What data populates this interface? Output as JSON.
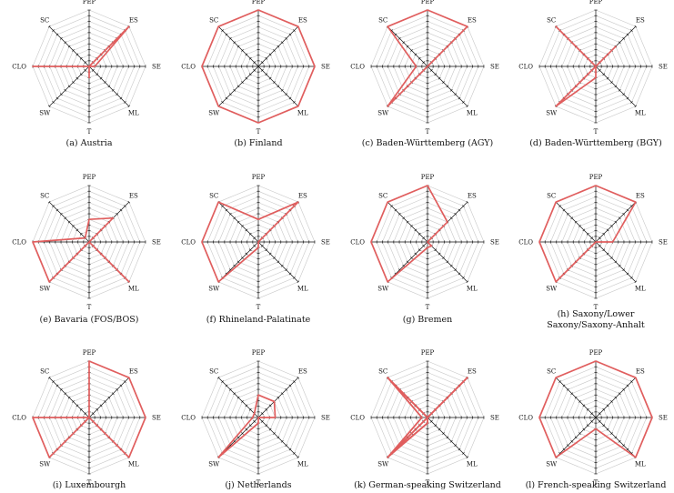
{
  "figure": {
    "colors": {
      "grid": "#c8c8c8",
      "axis": "#111111",
      "series": "#e05e5e"
    }
  },
  "chart_data": [
    {
      "type": "radar",
      "id": "a",
      "caption": "(a) Austria",
      "axes": [
        "PEP",
        "ES",
        "SE",
        "ML",
        "T",
        "SW",
        "CLO",
        "SC"
      ],
      "rmax": 10,
      "series": [
        {
          "name": "Austria",
          "values": [
            0,
            10,
            1,
            0,
            2,
            0,
            10,
            0
          ]
        }
      ]
    },
    {
      "type": "radar",
      "id": "b",
      "caption": "(b) Finland",
      "axes": [
        "PEP",
        "ES",
        "SE",
        "ML",
        "T",
        "SW",
        "CLO",
        "SC"
      ],
      "rmax": 10,
      "series": [
        {
          "name": "Finland",
          "values": [
            10,
            10,
            10,
            10,
            10,
            10,
            10,
            10
          ]
        }
      ]
    },
    {
      "type": "radar",
      "id": "c",
      "caption": "(c) Baden-Württemberg (AGY)",
      "axes": [
        "PEP",
        "ES",
        "SE",
        "ML",
        "T",
        "SW",
        "CLO",
        "SC"
      ],
      "rmax": 10,
      "series": [
        {
          "name": "Baden-Württemberg (AGY)",
          "values": [
            10,
            10,
            0,
            0,
            0,
            10,
            2,
            10
          ]
        }
      ]
    },
    {
      "type": "radar",
      "id": "d",
      "caption": "(d) Baden-Württemberg (BGY)",
      "axes": [
        "PEP",
        "ES",
        "SE",
        "ML",
        "T",
        "SW",
        "CLO",
        "SC"
      ],
      "rmax": 10,
      "series": [
        {
          "name": "Baden-Württemberg (BGY)",
          "values": [
            0,
            5,
            0,
            0,
            2,
            10,
            0,
            10
          ]
        }
      ]
    },
    {
      "type": "radar",
      "id": "e",
      "caption": "(e) Bavaria (FOS/BOS)",
      "axes": [
        "PEP",
        "ES",
        "SE",
        "ML",
        "T",
        "SW",
        "CLO",
        "SC"
      ],
      "rmax": 10,
      "series": [
        {
          "name": "Bavaria (FOS/BOS)",
          "values": [
            4,
            6,
            0,
            10,
            0,
            10,
            10,
            1
          ]
        }
      ]
    },
    {
      "type": "radar",
      "id": "f",
      "caption": "(f) Rhineland-Palatinate",
      "axes": [
        "PEP",
        "ES",
        "SE",
        "ML",
        "T",
        "SW",
        "CLO",
        "SC"
      ],
      "rmax": 10,
      "series": [
        {
          "name": "Rhineland-Palatinate",
          "values": [
            4,
            10,
            0,
            0,
            1,
            10,
            10,
            10
          ]
        }
      ]
    },
    {
      "type": "radar",
      "id": "g",
      "caption": "(g) Bremen",
      "axes": [
        "PEP",
        "ES",
        "SE",
        "ML",
        "T",
        "SW",
        "CLO",
        "SC"
      ],
      "rmax": 10,
      "series": [
        {
          "name": "Bremen",
          "values": [
            10,
            5,
            0,
            1,
            1,
            10,
            10,
            10
          ]
        }
      ]
    },
    {
      "type": "radar",
      "id": "h",
      "caption": [
        "(h) Saxony/Lower",
        "Saxony/Saxony-Anhalt"
      ],
      "axes": [
        "PEP",
        "ES",
        "SE",
        "ML",
        "T",
        "SW",
        "CLO",
        "SC"
      ],
      "rmax": 10,
      "series": [
        {
          "name": "Saxony/Lower Saxony/Saxony-Anhalt",
          "values": [
            10,
            10,
            3,
            0,
            0,
            10,
            10,
            10
          ]
        }
      ]
    },
    {
      "type": "radar",
      "id": "i",
      "caption": "(i) Luxembourgh",
      "axes": [
        "PEP",
        "ES",
        "SE",
        "ML",
        "T",
        "SW",
        "CLO",
        "SC"
      ],
      "rmax": 10,
      "series": [
        {
          "name": "Luxembourgh",
          "values": [
            10,
            10,
            10,
            10,
            0,
            10,
            10,
            0
          ]
        }
      ]
    },
    {
      "type": "radar",
      "id": "j",
      "caption": "(j) Netherlands",
      "axes": [
        "PEP",
        "ES",
        "SE",
        "ML",
        "T",
        "SW",
        "CLO",
        "SC"
      ],
      "rmax": 10,
      "series": [
        {
          "name": "Netherlands",
          "values": [
            4,
            4,
            3,
            0,
            1,
            10,
            1,
            1
          ]
        }
      ]
    },
    {
      "type": "radar",
      "id": "k",
      "caption": "(k) German-speaking Switzerland",
      "axes": [
        "PEP",
        "ES",
        "SE",
        "ML",
        "T",
        "SW",
        "CLO",
        "SC"
      ],
      "rmax": 10,
      "series": [
        {
          "name": "German-speaking Switzerland A",
          "values": [
            0,
            10,
            0,
            0,
            0,
            10,
            1,
            10
          ]
        },
        {
          "name": "German-speaking Switzerland B",
          "values": [
            0,
            10,
            0,
            0,
            1,
            10,
            0,
            10
          ]
        },
        {
          "name": "German-speaking Switzerland C",
          "values": [
            0,
            9,
            0,
            0,
            1,
            9,
            1,
            9
          ]
        }
      ]
    },
    {
      "type": "radar",
      "id": "l",
      "caption": "(l) French-speaking Switzerland",
      "axes": [
        "PEP",
        "ES",
        "SE",
        "ML",
        "T",
        "SW",
        "CLO",
        "SC"
      ],
      "rmax": 10,
      "series": [
        {
          "name": "French-speaking Switzerland",
          "values": [
            10,
            10,
            10,
            10,
            2,
            10,
            10,
            10
          ]
        }
      ]
    }
  ]
}
